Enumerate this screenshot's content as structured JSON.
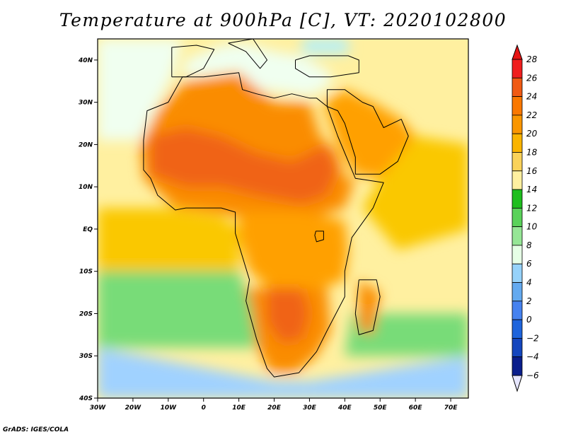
{
  "title": "Temperature at 900hPa [C], VT: 2020102800",
  "credit": "GrADS: IGES/COLA",
  "map": {
    "lon_range": [
      -30,
      75
    ],
    "lat_range": [
      -40,
      45
    ],
    "lon_ticks": [
      {
        "value": -30,
        "label": "30W"
      },
      {
        "value": -20,
        "label": "20W"
      },
      {
        "value": -10,
        "label": "10W"
      },
      {
        "value": 0,
        "label": "0"
      },
      {
        "value": 10,
        "label": "10E"
      },
      {
        "value": 20,
        "label": "20E"
      },
      {
        "value": 30,
        "label": "30E"
      },
      {
        "value": 40,
        "label": "40E"
      },
      {
        "value": 50,
        "label": "50E"
      },
      {
        "value": 60,
        "label": "60E"
      },
      {
        "value": 70,
        "label": "70E"
      }
    ],
    "lat_ticks": [
      {
        "value": 40,
        "label": "40N"
      },
      {
        "value": 30,
        "label": "30N"
      },
      {
        "value": 20,
        "label": "20N"
      },
      {
        "value": 10,
        "label": "10N"
      },
      {
        "value": 0,
        "label": "EQ"
      },
      {
        "value": -10,
        "label": "10S"
      },
      {
        "value": -20,
        "label": "20S"
      },
      {
        "value": -30,
        "label": "30S"
      },
      {
        "value": -40,
        "label": "40S"
      }
    ],
    "fill_regions": [
      {
        "name": "mediterranean",
        "color": "#f0fff0",
        "points": [
          [
            -6,
            36
          ],
          [
            0,
            36.5
          ],
          [
            10,
            37.5
          ],
          [
            15,
            33
          ],
          [
            22,
            32.5
          ],
          [
            30,
            31.5
          ],
          [
            36,
            34
          ],
          [
            36,
            37
          ],
          [
            28,
            41
          ],
          [
            20,
            42
          ],
          [
            12,
            44
          ],
          [
            5,
            43.5
          ],
          [
            -5,
            40
          ]
        ]
      },
      {
        "name": "black-sea",
        "color": "#b4f0fa",
        "points": [
          [
            28,
            41.5
          ],
          [
            41,
            41.5
          ],
          [
            41,
            45
          ],
          [
            28,
            45
          ]
        ]
      },
      {
        "name": "north-atlantic",
        "color": "#f0fff0",
        "points": [
          [
            -30,
            45
          ],
          [
            -6,
            45
          ],
          [
            -9,
            36
          ],
          [
            -14,
            28
          ],
          [
            -18,
            21
          ],
          [
            -30,
            21
          ]
        ]
      },
      {
        "name": "sahara",
        "color": "#fa8c00",
        "points": [
          [
            -13,
            28
          ],
          [
            -5,
            35
          ],
          [
            10,
            37
          ],
          [
            20,
            30
          ],
          [
            30,
            30
          ],
          [
            33,
            22
          ],
          [
            38,
            18
          ],
          [
            40,
            12
          ],
          [
            43,
            12
          ],
          [
            40,
            5
          ],
          [
            28,
            2
          ],
          [
            10,
            3
          ],
          [
            -8,
            5
          ],
          [
            -17,
            12
          ],
          [
            -18,
            20
          ]
        ]
      },
      {
        "name": "sahel-hot-core",
        "color": "#f06414",
        "points": [
          [
            -15,
            22
          ],
          [
            -5,
            24
          ],
          [
            5,
            22
          ],
          [
            15,
            18
          ],
          [
            25,
            16
          ],
          [
            30,
            18
          ],
          [
            35,
            20
          ],
          [
            38,
            14
          ],
          [
            35,
            8
          ],
          [
            28,
            6
          ],
          [
            15,
            8
          ],
          [
            5,
            10
          ],
          [
            -5,
            10
          ],
          [
            -15,
            13
          ]
        ]
      },
      {
        "name": "arabia",
        "color": "#ffa000",
        "points": [
          [
            34,
            30
          ],
          [
            40,
            33
          ],
          [
            48,
            30
          ],
          [
            56,
            26
          ],
          [
            60,
            22
          ],
          [
            58,
            14
          ],
          [
            50,
            12
          ],
          [
            43,
            13
          ],
          [
            38,
            20
          ]
        ]
      },
      {
        "name": "arabian-sea",
        "color": "#fac800",
        "points": [
          [
            50,
            12
          ],
          [
            60,
            22
          ],
          [
            75,
            20
          ],
          [
            75,
            0
          ],
          [
            55,
            -5
          ],
          [
            45,
            5
          ]
        ]
      },
      {
        "name": "gulf-of-guinea",
        "color": "#fac800",
        "points": [
          [
            -30,
            5
          ],
          [
            -10,
            5
          ],
          [
            5,
            3
          ],
          [
            10,
            0
          ],
          [
            10,
            -10
          ],
          [
            0,
            -12
          ],
          [
            -30,
            -10
          ]
        ]
      },
      {
        "name": "central-africa",
        "color": "#ffa000",
        "points": [
          [
            10,
            4
          ],
          [
            28,
            4
          ],
          [
            40,
            2
          ],
          [
            41,
            -5
          ],
          [
            40,
            -12
          ],
          [
            30,
            -15
          ],
          [
            20,
            -15
          ],
          [
            13,
            -10
          ],
          [
            10,
            -2
          ]
        ]
      },
      {
        "name": "south-africa",
        "color": "#fa8c00",
        "points": [
          [
            12,
            -14
          ],
          [
            35,
            -14
          ],
          [
            36,
            -24
          ],
          [
            32,
            -30
          ],
          [
            26,
            -34
          ],
          [
            19,
            -34
          ],
          [
            15,
            -28
          ]
        ]
      },
      {
        "name": "kalahari-core",
        "color": "#f06414",
        "points": [
          [
            18,
            -14
          ],
          [
            28,
            -14
          ],
          [
            30,
            -20
          ],
          [
            28,
            -26
          ],
          [
            22,
            -27
          ],
          [
            18,
            -22
          ]
        ]
      },
      {
        "name": "south-atlantic-green",
        "color": "#78dc78",
        "points": [
          [
            -30,
            -10
          ],
          [
            10,
            -10
          ],
          [
            13,
            -17
          ],
          [
            15,
            -28
          ],
          [
            -30,
            -28
          ]
        ]
      },
      {
        "name": "south-atlantic-blue",
        "color": "#a0d2ff",
        "points": [
          [
            -30,
            -28
          ],
          [
            20,
            -36
          ],
          [
            30,
            -36
          ],
          [
            30,
            -40
          ],
          [
            -30,
            -40
          ]
        ]
      },
      {
        "name": "indian-ocean-green",
        "color": "#78dc78",
        "points": [
          [
            42,
            -20
          ],
          [
            75,
            -20
          ],
          [
            75,
            -30
          ],
          [
            40,
            -30
          ]
        ]
      },
      {
        "name": "southern-indian-blue",
        "color": "#a0d2ff",
        "points": [
          [
            30,
            -36
          ],
          [
            75,
            -30
          ],
          [
            75,
            -40
          ],
          [
            30,
            -40
          ]
        ]
      },
      {
        "name": "madagascar",
        "color": "#fa8c00",
        "points": [
          [
            44,
            -12
          ],
          [
            50,
            -15
          ],
          [
            48,
            -25
          ],
          [
            44,
            -24
          ]
        ]
      }
    ],
    "boundaries": [
      {
        "name": "africa-outline",
        "points": [
          [
            -17,
            21
          ],
          [
            -16,
            28
          ],
          [
            -10,
            30
          ],
          [
            -6,
            36
          ],
          [
            0,
            36
          ],
          [
            10,
            37
          ],
          [
            11,
            33
          ],
          [
            15,
            32
          ],
          [
            20,
            31
          ],
          [
            25,
            32
          ],
          [
            30,
            31
          ],
          [
            32,
            31
          ],
          [
            35,
            29
          ],
          [
            38,
            22
          ],
          [
            42,
            14
          ],
          [
            43,
            12
          ],
          [
            51,
            11
          ],
          [
            48,
            5
          ],
          [
            42,
            -2
          ],
          [
            40,
            -10
          ],
          [
            40,
            -16
          ],
          [
            35,
            -24
          ],
          [
            32,
            -29
          ],
          [
            27,
            -34
          ],
          [
            20,
            -35
          ],
          [
            18,
            -33
          ],
          [
            15,
            -26
          ],
          [
            12,
            -17
          ],
          [
            13,
            -12
          ],
          [
            9,
            -1
          ],
          [
            9,
            4
          ],
          [
            5,
            5
          ],
          [
            -5,
            5
          ],
          [
            -8,
            4.5
          ],
          [
            -13,
            8
          ],
          [
            -15,
            12
          ],
          [
            -17,
            14
          ],
          [
            -17,
            21
          ]
        ]
      },
      {
        "name": "madagascar-outline",
        "points": [
          [
            44,
            -12
          ],
          [
            49,
            -12
          ],
          [
            50,
            -16
          ],
          [
            48,
            -24
          ],
          [
            44,
            -25
          ],
          [
            43,
            -20
          ]
        ]
      },
      {
        "name": "arabia-outline",
        "points": [
          [
            35,
            29
          ],
          [
            38,
            28
          ],
          [
            40,
            25
          ],
          [
            43,
            17
          ],
          [
            43,
            13
          ],
          [
            50,
            13
          ],
          [
            55,
            16
          ],
          [
            58,
            22
          ],
          [
            56,
            26
          ],
          [
            51,
            24
          ],
          [
            48,
            29
          ],
          [
            45,
            30
          ],
          [
            40,
            33
          ],
          [
            35,
            33
          ]
        ]
      },
      {
        "name": "iberia-outline",
        "points": [
          [
            -9,
            36
          ],
          [
            -9,
            43
          ],
          [
            -2,
            43.5
          ],
          [
            3,
            42.5
          ],
          [
            0,
            38
          ],
          [
            -5,
            36
          ]
        ]
      },
      {
        "name": "italy-outline",
        "points": [
          [
            7,
            44
          ],
          [
            12,
            42
          ],
          [
            16,
            38
          ],
          [
            18,
            40
          ],
          [
            14,
            45
          ],
          [
            7,
            44
          ]
        ]
      },
      {
        "name": "turkey-outline",
        "points": [
          [
            26,
            40
          ],
          [
            30,
            41
          ],
          [
            41,
            41
          ],
          [
            44,
            40
          ],
          [
            44,
            37
          ],
          [
            36,
            36
          ],
          [
            30,
            36
          ],
          [
            26,
            38
          ]
        ]
      },
      {
        "name": "lake-victoria",
        "points": [
          [
            31.8,
            -0.5
          ],
          [
            34,
            -0.5
          ],
          [
            34,
            -2.5
          ],
          [
            32,
            -3
          ],
          [
            31.5,
            -1.5
          ]
        ]
      }
    ]
  },
  "colorbar": {
    "levels": [
      "28",
      "26",
      "24",
      "22",
      "20",
      "18",
      "16",
      "14",
      "12",
      "10",
      "8",
      "6",
      "4",
      "2",
      "0",
      "−2",
      "−4",
      "−6"
    ],
    "colors": [
      "#f01e1e",
      "#f05a14",
      "#fa7800",
      "#fa9600",
      "#fab400",
      "#fad25a",
      "#fff0a0",
      "#1ebe1e",
      "#5ad25a",
      "#96e696",
      "#e6ffe6",
      "#96d2fa",
      "#64aaf0",
      "#4682f0",
      "#1e64dc",
      "#1446be",
      "#0a1e8c"
    ],
    "top_cap_color": "#e61414",
    "bottom_cap_color": "#e6e6ff"
  }
}
